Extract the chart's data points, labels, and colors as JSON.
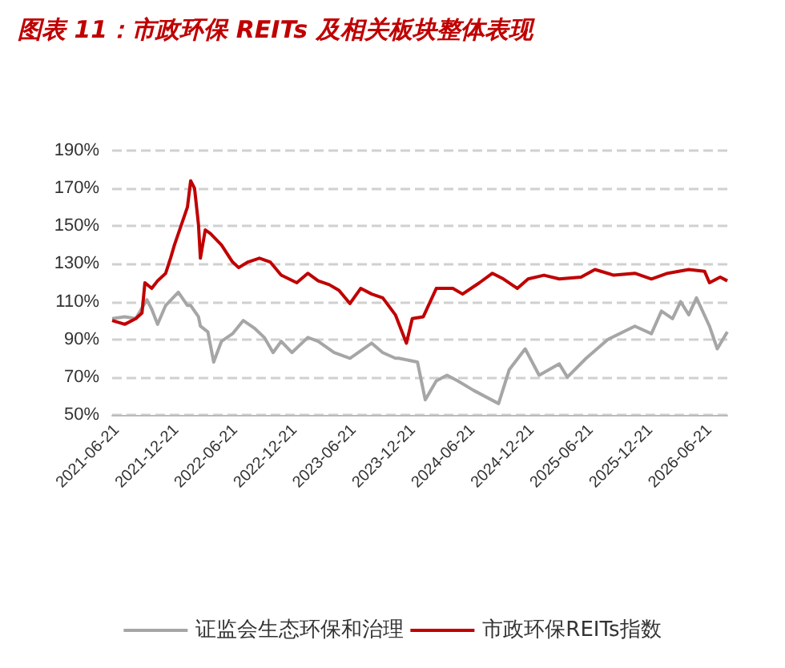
{
  "chart_data": {
    "type": "line",
    "title": "图表 11：市政环保 REITs 及相关板块整体表现",
    "xlim": [
      "2021-06-06",
      "2026-08-15"
    ],
    "xticks": [
      "2021-06-21",
      "2021-12-21",
      "2022-06-21",
      "2022-12-21",
      "2023-06-21",
      "2023-12-21",
      "2024-06-21",
      "2024-12-21",
      "2025-06-21",
      "2025-12-21",
      "2026-06-21"
    ],
    "ylim": [
      50,
      190
    ],
    "yticks": [
      {
        "value": 50,
        "label": "50%"
      },
      {
        "value": 70,
        "label": "70%"
      },
      {
        "value": 90,
        "label": "90%"
      },
      {
        "value": 110,
        "label": "110%"
      },
      {
        "value": 130,
        "label": "130%"
      },
      {
        "value": 150,
        "label": "150%"
      },
      {
        "value": 170,
        "label": "170%"
      },
      {
        "value": 190,
        "label": "190%"
      }
    ],
    "grid": "y",
    "legend": "bottom",
    "marker": "none",
    "line_style": "solid",
    "series": [
      {
        "name": "证监会生态环保和治理",
        "color": "#a6a6a6",
        "x": [
          "2021-06-06",
          "2021-07-15",
          "2021-08-18",
          "2021-09-21",
          "2021-10-06",
          "2021-10-24",
          "2021-11-18",
          "2021-12-27",
          "2022-01-24",
          "2022-02-03",
          "2022-02-27",
          "2022-03-05",
          "2022-03-28",
          "2022-04-15",
          "2022-05-09",
          "2022-06-12",
          "2022-07-15",
          "2022-08-18",
          "2022-09-18",
          "2022-10-15",
          "2022-11-09",
          "2022-12-12",
          "2023-01-30",
          "2023-03-03",
          "2023-04-21",
          "2023-06-09",
          "2023-08-15",
          "2023-09-18",
          "2023-10-27",
          "2023-11-06",
          "2024-01-03",
          "2024-01-27",
          "2024-03-01",
          "2024-04-03",
          "2024-05-06",
          "2024-06-24",
          "2024-09-09",
          "2024-10-12",
          "2024-11-30",
          "2025-01-12",
          "2025-03-15",
          "2025-04-09",
          "2025-06-06",
          "2025-08-12",
          "2025-11-03",
          "2025-12-24",
          "2026-01-24",
          "2026-02-27",
          "2026-03-24",
          "2026-04-18",
          "2026-05-12",
          "2026-06-21",
          "2026-07-15",
          "2026-08-15"
        ],
        "values": [
          101,
          102,
          101,
          111,
          106,
          98,
          108,
          115,
          108,
          108,
          102,
          97,
          94,
          78,
          89,
          93,
          100,
          96,
          91,
          83,
          89,
          83,
          91,
          89,
          83,
          80,
          88,
          83,
          80,
          80,
          78,
          58,
          68,
          71,
          68,
          63,
          56,
          74,
          85,
          71,
          77,
          70,
          80,
          90,
          97,
          93,
          105,
          101,
          110,
          103,
          112,
          97,
          85,
          94
        ]
      },
      {
        "name": "市政环保REITs指数",
        "color": "#c00000",
        "x": [
          "2021-06-06",
          "2021-07-15",
          "2021-08-18",
          "2021-09-06",
          "2021-09-15",
          "2021-10-06",
          "2021-10-24",
          "2021-11-18",
          "2021-12-03",
          "2021-12-15",
          "2022-01-06",
          "2022-01-24",
          "2022-02-03",
          "2022-02-15",
          "2022-02-27",
          "2022-03-05",
          "2022-03-20",
          "2022-04-05",
          "2022-05-09",
          "2022-06-12",
          "2022-07-01",
          "2022-07-30",
          "2022-09-03",
          "2022-10-06",
          "2022-11-09",
          "2022-12-27",
          "2023-01-30",
          "2023-03-03",
          "2023-04-06",
          "2023-05-06",
          "2023-06-09",
          "2023-07-12",
          "2023-08-15",
          "2023-09-18",
          "2023-10-27",
          "2023-11-30",
          "2023-12-18",
          "2024-01-21",
          "2024-03-01",
          "2024-04-21",
          "2024-05-21",
          "2024-07-12",
          "2024-08-21",
          "2024-09-24",
          "2024-11-06",
          "2024-12-09",
          "2025-01-27",
          "2025-03-15",
          "2025-05-21",
          "2025-07-03",
          "2025-08-30",
          "2025-11-03",
          "2025-12-24",
          "2026-02-12",
          "2026-04-18",
          "2026-06-06",
          "2026-06-21",
          "2026-07-24",
          "2026-08-15"
        ],
        "values": [
          100,
          98,
          101,
          104,
          120,
          117,
          121,
          125,
          133,
          140,
          151,
          160,
          174,
          170,
          151,
          133,
          148,
          146,
          140,
          131,
          128,
          131,
          133,
          131,
          124,
          120,
          125,
          121,
          119,
          116,
          109,
          117,
          114,
          112,
          103,
          88,
          101,
          102,
          117,
          117,
          114,
          120,
          125,
          122,
          117,
          122,
          124,
          122,
          123,
          127,
          124,
          125,
          122,
          125,
          127,
          126,
          120,
          123,
          121
        ]
      }
    ]
  }
}
